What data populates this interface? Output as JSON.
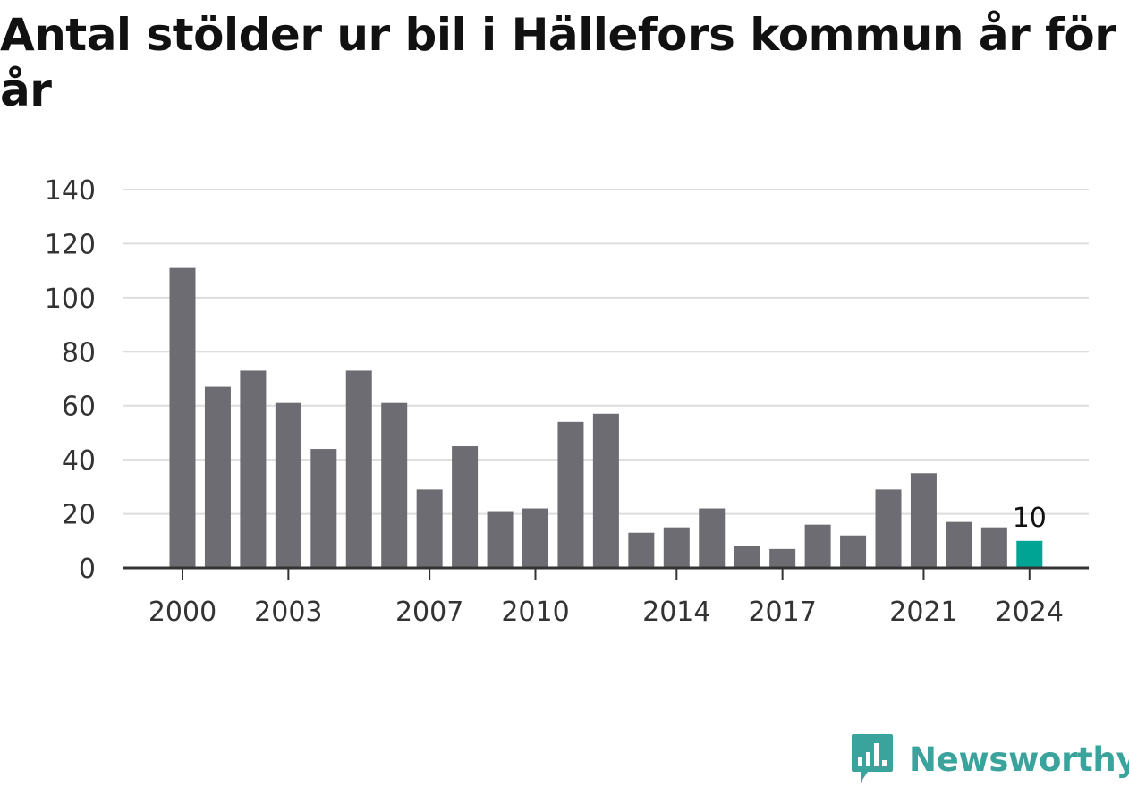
{
  "chart_data": {
    "type": "bar",
    "title": "Antal stölder ur bil i Hällefors kommun år för år",
    "xlabel": "",
    "ylabel": "",
    "ylim": [
      0,
      140
    ],
    "yticks": [
      "0",
      "20",
      "40",
      "60",
      "80",
      "100",
      "120",
      "140"
    ],
    "xticks": [
      "2000",
      "2003",
      "2007",
      "2010",
      "2014",
      "2017",
      "2021",
      "2024"
    ],
    "categories": [
      "2000",
      "2001",
      "2002",
      "2003",
      "2004",
      "2005",
      "2006",
      "2007",
      "2008",
      "2009",
      "2010",
      "2011",
      "2012",
      "2013",
      "2014",
      "2015",
      "2016",
      "2017",
      "2018",
      "2019",
      "2020",
      "2021",
      "2022",
      "2023",
      "2024"
    ],
    "values": [
      111,
      67,
      73,
      61,
      44,
      73,
      61,
      29,
      45,
      21,
      22,
      54,
      57,
      13,
      15,
      22,
      8,
      7,
      16,
      12,
      29,
      35,
      17,
      15,
      10
    ],
    "highlight_index": 24,
    "highlight_label": "10",
    "colors": {
      "bar": "#6d6c72",
      "highlight": "#00a495",
      "grid": "#dddddd",
      "axis": "#333333"
    },
    "grid": true,
    "legend": "none"
  },
  "brand": {
    "name": "Newsworthy",
    "icon": "newsworthy-logo-icon"
  }
}
